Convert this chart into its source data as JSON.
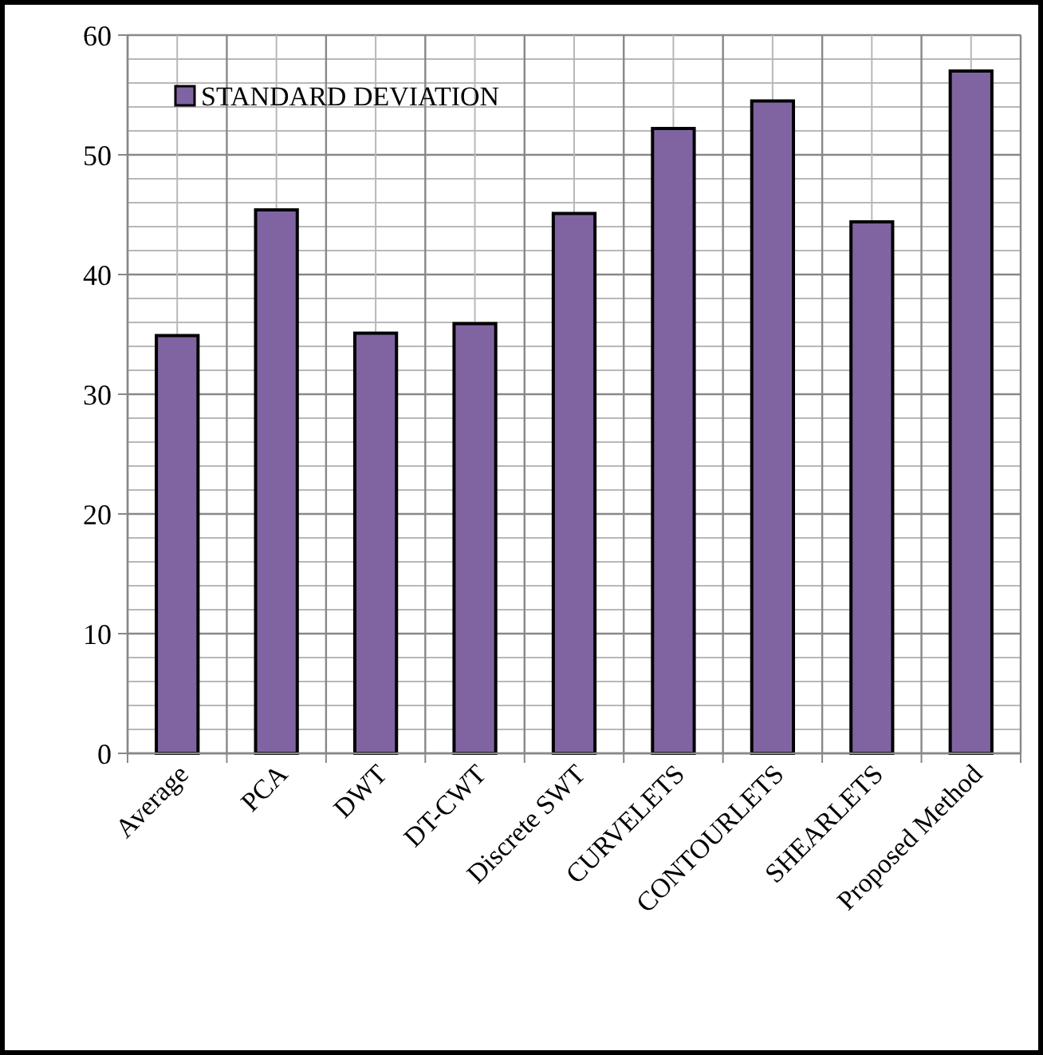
{
  "chart_data": {
    "type": "bar",
    "categories": [
      "Average",
      "PCA",
      "DWT",
      "DT-CWT",
      "Discrete SWT",
      "CURVELETS",
      "CONTOURLETS",
      "SHEARLETS",
      "Proposed Method"
    ],
    "series": [
      {
        "name": "STANDARD DEVIATION",
        "color": "#8064a2",
        "values": [
          34.9,
          45.4,
          35.1,
          35.9,
          45.1,
          52.2,
          54.5,
          44.4,
          57.0
        ]
      }
    ],
    "ylim": [
      0,
      60
    ],
    "yticks": [
      0,
      10,
      20,
      30,
      40,
      50,
      60
    ],
    "grid": true,
    "legend": "top left"
  }
}
